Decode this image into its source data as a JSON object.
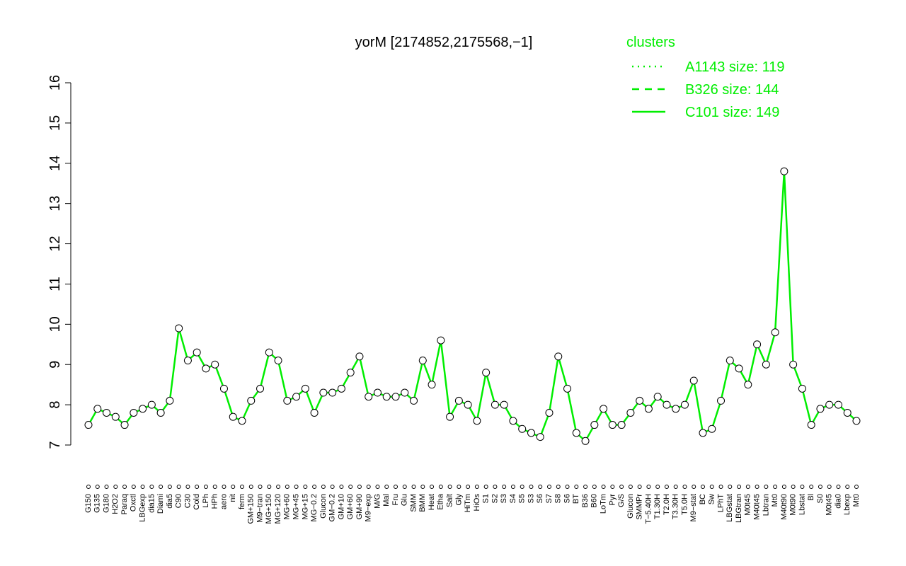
{
  "chart_data": {
    "type": "line",
    "title": "yorM [2174852,2175568,−1]",
    "categories": [
      "G150",
      "G135",
      "G180",
      "H2O2",
      "Paraq",
      "Oxctl",
      "LBGexp",
      "dia15",
      "Diami",
      "dia5",
      "C90",
      "C30",
      "Cold",
      "LPh",
      "HPh",
      "aero",
      "nit",
      "ferm",
      "GM+150",
      "M9−tran",
      "MG+150",
      "MG+120",
      "MG+60",
      "MG+45",
      "MG+15",
      "MG−0.2",
      "Glucon",
      "GM−0.2",
      "GM+10",
      "GM+60",
      "GM+90",
      "M9−exp",
      "M/G",
      "Mal",
      "Fru",
      "Glu",
      "SMM",
      "BMM",
      "Heat",
      "Etha",
      "Salt",
      "Gly",
      "HiTm",
      "HiOs",
      "S1",
      "S2",
      "S3",
      "S4",
      "S5",
      "S3",
      "S6",
      "S7",
      "S8",
      "S6",
      "BT",
      "B36",
      "B60",
      "LoTm",
      "Pyr",
      "G/S",
      "Glucon",
      "SMMPr",
      "T−5.40H",
      "T1.30H",
      "T2.0H",
      "T3.30H",
      "T5.0H",
      "M9−stat",
      "BC",
      "Sw",
      "LPhT",
      "LBGstat",
      "LBGtran",
      "M0t45",
      "M40t45",
      "Lbtran",
      "Mt0",
      "M40t90",
      "M0t90",
      "Lbstat",
      "Bl",
      "S0",
      "M0t45",
      "dia0",
      "Lbexp",
      "Mt0"
    ],
    "values": [
      7.5,
      7.9,
      7.8,
      7.7,
      7.5,
      7.8,
      7.9,
      8.0,
      7.8,
      8.1,
      9.9,
      9.1,
      9.3,
      8.9,
      9.0,
      8.4,
      7.7,
      7.6,
      8.1,
      8.4,
      9.3,
      9.1,
      8.1,
      8.2,
      8.4,
      7.8,
      8.3,
      8.3,
      8.4,
      8.8,
      9.2,
      8.2,
      8.3,
      8.2,
      8.2,
      8.3,
      8.1,
      9.1,
      8.5,
      9.6,
      7.7,
      8.1,
      8.0,
      7.6,
      8.8,
      8.0,
      8.0,
      7.6,
      7.4,
      7.3,
      7.2,
      7.8,
      9.2,
      8.4,
      7.3,
      7.1,
      7.5,
      7.9,
      7.5,
      7.5,
      7.8,
      8.1,
      7.9,
      8.2,
      8.0,
      7.9,
      8.0,
      8.6,
      7.3,
      7.4,
      8.1,
      9.1,
      8.9,
      8.5,
      9.5,
      9.0,
      9.8,
      13.8,
      9.0,
      8.4,
      7.5,
      7.9,
      8.0,
      8.0,
      7.8,
      7.6
    ],
    "color": "#00ee00",
    "ylim": [
      7,
      16
    ],
    "yticks": [
      7,
      8,
      9,
      10,
      11,
      12,
      13,
      14,
      15,
      16
    ],
    "legend": {
      "title": "clusters",
      "entries": [
        {
          "label": "A1143 size: 119",
          "dash": "dotted"
        },
        {
          "label": "B326 size: 144",
          "dash": "dashed"
        },
        {
          "label": "C101 size: 149",
          "dash": "solid"
        }
      ]
    }
  }
}
